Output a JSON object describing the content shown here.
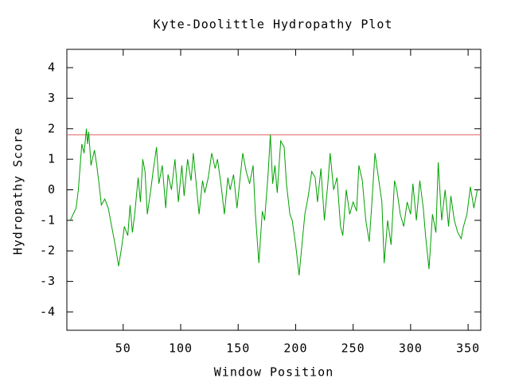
{
  "chart_data": {
    "type": "line",
    "title": "Kyte-Doolittle Hydropathy Plot",
    "x_label": "Window Position",
    "y_label": "Hydropathy Score",
    "xlim": [
      1,
      361
    ],
    "ylim": [
      -4.6,
      4.6
    ],
    "xticks": [
      50,
      100,
      150,
      200,
      250,
      300,
      350
    ],
    "yticks": [
      -4,
      -3,
      -2,
      -1,
      0,
      1,
      2,
      3,
      4
    ],
    "threshold": 1.8,
    "threshold_color": "#e06060",
    "color": "#00a000",
    "x": [
      4,
      9,
      11,
      12,
      14,
      16,
      18,
      19,
      20,
      22,
      25,
      27,
      29,
      31,
      34,
      37,
      40,
      43,
      46,
      49,
      51,
      54,
      56,
      58,
      60,
      63,
      65,
      67,
      69,
      71,
      74,
      76,
      79,
      81,
      84,
      87,
      89,
      92,
      95,
      98,
      101,
      103,
      106,
      109,
      111,
      114,
      116,
      119,
      121,
      124,
      127,
      130,
      132,
      135,
      138,
      141,
      143,
      146,
      149,
      152,
      154,
      157,
      160,
      163,
      165,
      168,
      171,
      173,
      176,
      178,
      180,
      182,
      184,
      187,
      190,
      192,
      195,
      197,
      200,
      203,
      206,
      208,
      211,
      214,
      217,
      219,
      222,
      225,
      228,
      230,
      233,
      236,
      239,
      241,
      244,
      247,
      250,
      253,
      255,
      258,
      261,
      264,
      266,
      269,
      272,
      275,
      277,
      280,
      283,
      286,
      288,
      291,
      294,
      297,
      300,
      302,
      305,
      308,
      311,
      313,
      316,
      319,
      322,
      324,
      327,
      330,
      333,
      335,
      338,
      341,
      344,
      346,
      349,
      352,
      355,
      358
    ],
    "values": [
      -1.0,
      -0.6,
      0,
      0.5,
      1.5,
      1.2,
      2.0,
      1.5,
      1.9,
      0.8,
      1.3,
      0.8,
      0.2,
      -0.5,
      -0.3,
      -0.6,
      -1.2,
      -1.8,
      -2.5,
      -1.8,
      -1.2,
      -1.5,
      -0.5,
      -1.4,
      -0.8,
      0.4,
      -0.4,
      1.0,
      0.6,
      -0.8,
      0.0,
      0.6,
      1.4,
      0.2,
      0.8,
      -0.6,
      0.5,
      0.0,
      1.0,
      -0.4,
      0.8,
      -0.2,
      1.0,
      0.3,
      1.2,
      0.0,
      -0.8,
      0.3,
      -0.1,
      0.4,
      1.2,
      0.7,
      1.0,
      0.2,
      -0.8,
      0.4,
      0.0,
      0.5,
      -0.6,
      0.5,
      1.2,
      0.6,
      0.2,
      0.8,
      -0.8,
      -2.4,
      -0.7,
      -1.0,
      0.5,
      1.8,
      0.2,
      0.8,
      -0.1,
      1.6,
      1.4,
      0.2,
      -0.8,
      -1.0,
      -1.8,
      -2.8,
      -1.6,
      -0.8,
      -0.2,
      0.6,
      0.4,
      -0.4,
      0.7,
      -1.0,
      0.2,
      1.2,
      0.0,
      0.4,
      -1.2,
      -1.5,
      0.0,
      -0.8,
      -0.4,
      -0.7,
      0.8,
      0.3,
      -1.0,
      -1.7,
      -0.6,
      1.2,
      0.4,
      -0.4,
      -2.4,
      -1.0,
      -1.8,
      0.3,
      0.0,
      -0.8,
      -1.2,
      -0.4,
      -0.8,
      0.2,
      -1.0,
      0.3,
      -0.6,
      -1.5,
      -2.6,
      -0.8,
      -1.4,
      0.9,
      -1.0,
      0.0,
      -1.2,
      -0.2,
      -1.0,
      -1.4,
      -1.6,
      -1.2,
      -0.8,
      0.1,
      -0.6,
      0.0
    ]
  }
}
